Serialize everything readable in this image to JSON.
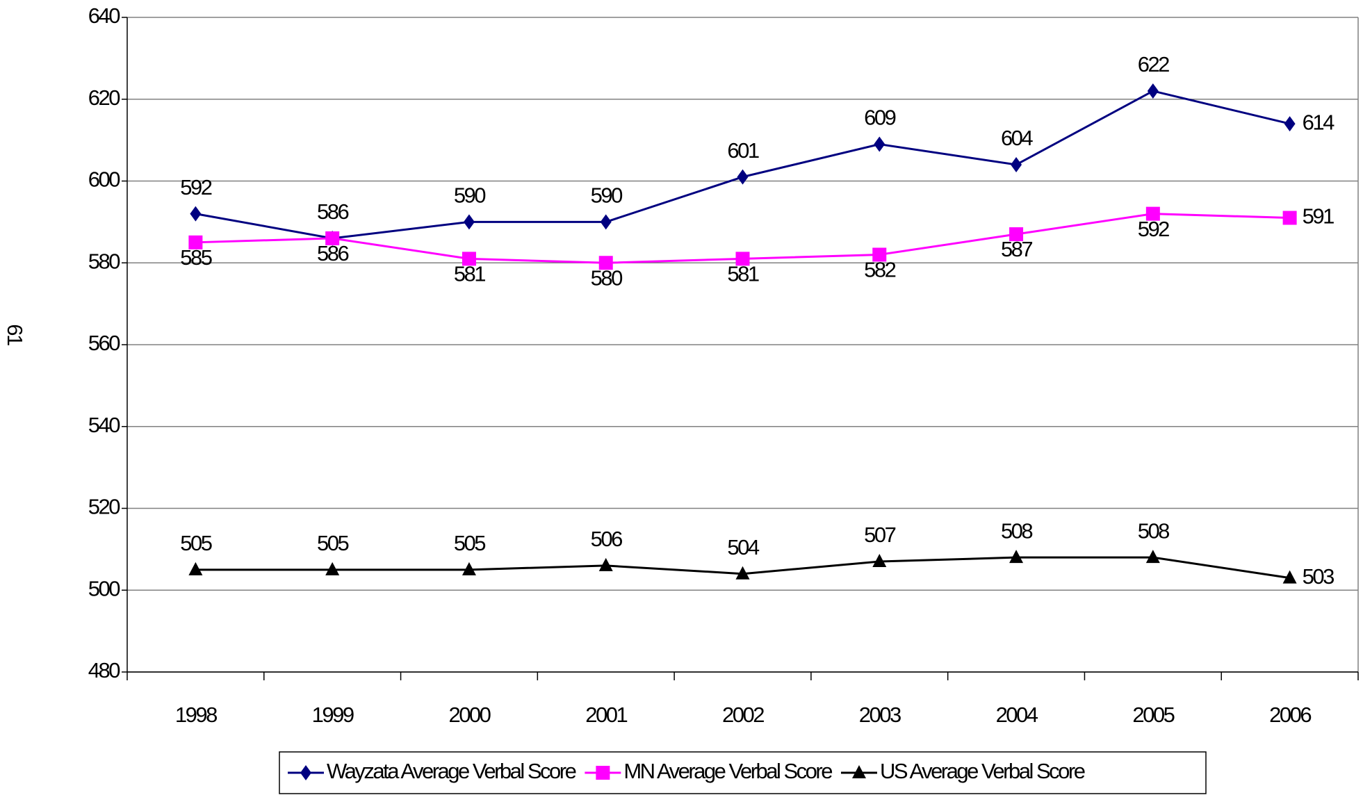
{
  "chart_data": {
    "type": "line",
    "side_label": "61",
    "categories": [
      "1998",
      "1999",
      "2000",
      "2001",
      "2002",
      "2003",
      "2004",
      "2005",
      "2006"
    ],
    "series": [
      {
        "name": "Wayzata Average Verbal Score",
        "color": "#000080",
        "marker": "diamond",
        "values": [
          592,
          586,
          590,
          590,
          601,
          609,
          604,
          622,
          614
        ]
      },
      {
        "name": "MN Average Verbal Score",
        "color": "#ff00ff",
        "marker": "square",
        "values": [
          585,
          586,
          581,
          580,
          581,
          582,
          587,
          592,
          591
        ]
      },
      {
        "name": "US Average Verbal Score",
        "color": "#000000",
        "marker": "triangle",
        "values": [
          505,
          505,
          505,
          506,
          504,
          507,
          508,
          508,
          503
        ]
      }
    ],
    "ylim": [
      480,
      640
    ],
    "yticks": [
      480,
      500,
      520,
      540,
      560,
      580,
      600,
      620,
      640
    ],
    "grid": true,
    "legend": "bottom"
  }
}
